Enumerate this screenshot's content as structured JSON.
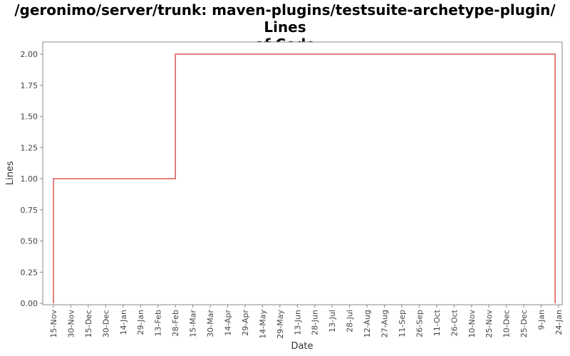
{
  "chart_data": {
    "type": "line",
    "title_lines": [
      "/geronimo/server/trunk: maven-plugins/testsuite-archetype-plugin/ Lines",
      "of Code"
    ],
    "xlabel": "Date",
    "ylabel": "Lines",
    "ylim": [
      0,
      2.1
    ],
    "yticks": [
      "0.00",
      "0.25",
      "0.50",
      "0.75",
      "1.00",
      "1.25",
      "1.50",
      "1.75",
      "2.00"
    ],
    "xticks": [
      "15-Nov",
      "30-Nov",
      "15-Dec",
      "30-Dec",
      "14-Jan",
      "29-Jan",
      "13-Feb",
      "28-Feb",
      "15-Mar",
      "30-Mar",
      "14-Apr",
      "29-Apr",
      "14-May",
      "29-May",
      "13-Jun",
      "28-Jun",
      "13-Jul",
      "28-Jul",
      "12-Aug",
      "27-Aug",
      "11-Sep",
      "26-Sep",
      "11-Oct",
      "26-Oct",
      "10-Nov",
      "25-Nov",
      "10-Dec",
      "25-Dec",
      "9-Jan",
      "24-Jan"
    ],
    "step": true,
    "line_color": "#cc0000",
    "series": [
      {
        "x": [
          "15-Nov",
          "15-Nov",
          "28-Feb",
          "28-Feb",
          "21-Jan",
          "21-Jan"
        ],
        "values": [
          0,
          1,
          1,
          2,
          2,
          0
        ]
      }
    ],
    "grid": false
  }
}
